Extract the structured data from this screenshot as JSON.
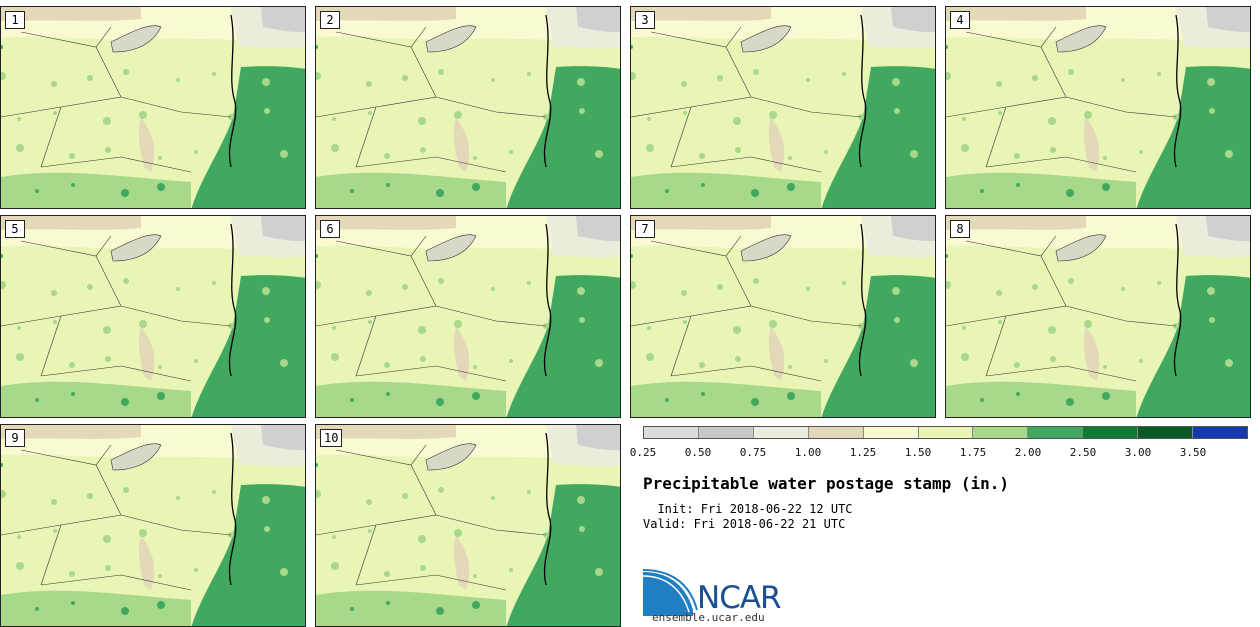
{
  "stamps": [
    {
      "label": "1"
    },
    {
      "label": "2"
    },
    {
      "label": "3"
    },
    {
      "label": "4"
    },
    {
      "label": "5"
    },
    {
      "label": "6"
    },
    {
      "label": "7"
    },
    {
      "label": "8"
    },
    {
      "label": "9"
    },
    {
      "label": "10"
    }
  ],
  "colorbar": {
    "ticks": [
      "0.25",
      "0.50",
      "0.75",
      "1.00",
      "1.25",
      "1.50",
      "1.75",
      "2.00",
      "2.50",
      "3.00",
      "3.50"
    ],
    "colors": [
      "#dcdcdc",
      "#c8c8c8",
      "#ececdc",
      "#e3d9b8",
      "#fafad2",
      "#e8f5b5",
      "#a8d88a",
      "#41a85f",
      "#0f7a33",
      "#0a5a25",
      "#1638b0"
    ]
  },
  "title": "Precipitable water postage stamp (in.)",
  "init": "  Init: Fri 2018-06-22 12 UTC",
  "valid": "Valid: Fri 2018-06-22 21 UTC",
  "logo": {
    "text": "NCAR",
    "url": "ensemble.ucar.edu"
  }
}
